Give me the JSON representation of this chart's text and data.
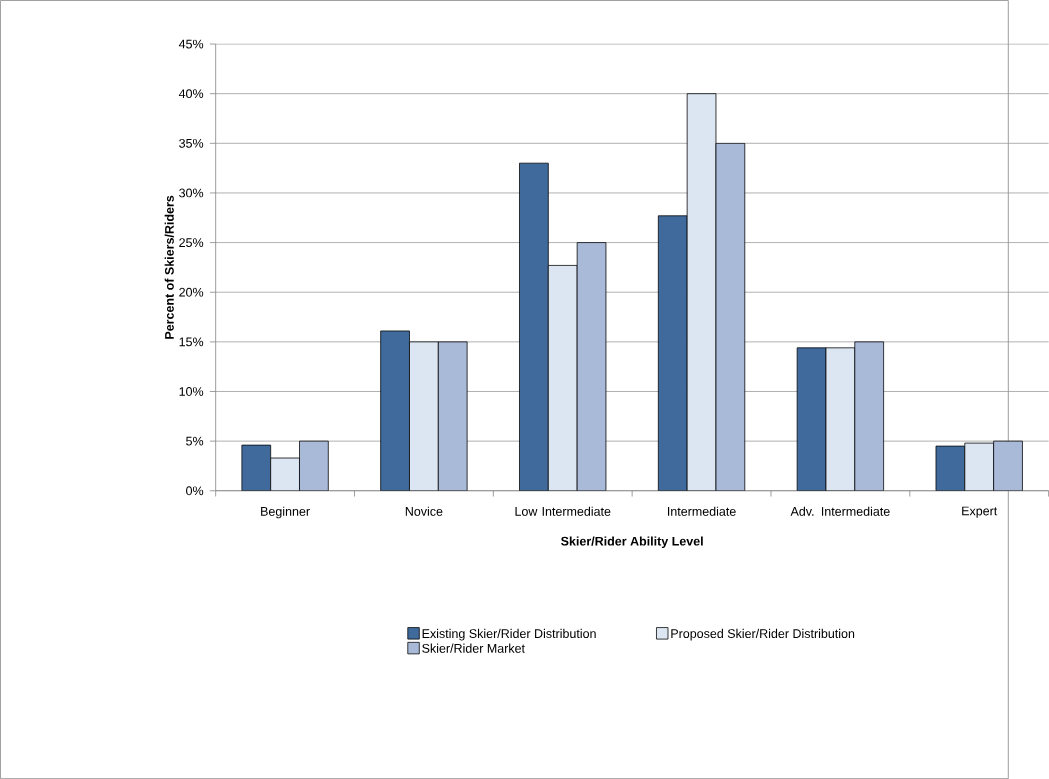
{
  "chart_data": {
    "type": "bar",
    "xlabel": "Skier/Rider Ability Level",
    "ylabel": "Percent of Skiers/Riders",
    "categories": [
      "Beginner",
      "Novice",
      "Low Intermediate",
      "Intermediate",
      "Adv. Intermediate",
      "Expert"
    ],
    "series": [
      {
        "name": "Existing Skier/Rider Distribution",
        "color": "#3f6a9b",
        "values": [
          4.6,
          16.1,
          33.0,
          27.7,
          14.4,
          4.5
        ]
      },
      {
        "name": "Proposed Skier/Rider Distribution",
        "color": "#dce6f2",
        "values": [
          3.3,
          15.0,
          22.7,
          40.0,
          14.4,
          4.8
        ]
      },
      {
        "name": "Skier/Rider Market",
        "color": "#a9b9d8",
        "values": [
          5.0,
          15.0,
          25.0,
          35.0,
          15.0,
          5.0
        ]
      }
    ],
    "ylim": [
      0,
      45
    ],
    "yticks": [
      {
        "value": 0,
        "label": "0%"
      },
      {
        "value": 5,
        "label": "5%"
      },
      {
        "value": 10,
        "label": "10%"
      },
      {
        "value": 15,
        "label": "15%"
      },
      {
        "value": 20,
        "label": "20%"
      },
      {
        "value": 25,
        "label": "25%"
      },
      {
        "value": 30,
        "label": "30%"
      },
      {
        "value": 35,
        "label": "35%"
      },
      {
        "value": 40,
        "label": "40%"
      },
      {
        "value": 45,
        "label": "45%"
      }
    ],
    "grid": "y",
    "legend": "bottom"
  }
}
